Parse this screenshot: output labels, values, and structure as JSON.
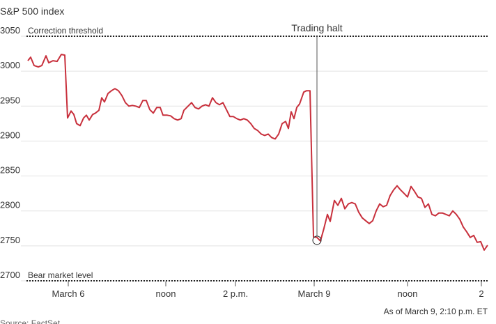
{
  "chart_data": {
    "type": "line",
    "title": "S&P 500 index",
    "x": [
      0,
      0.8,
      1.8,
      3,
      4,
      5.2,
      6,
      7.2,
      8.4,
      9.6,
      10.6,
      11.4,
      12.4,
      13.2,
      14,
      15,
      16,
      16.8,
      17.6,
      18.6,
      19.4,
      20.4,
      21.2,
      22,
      23,
      24,
      25,
      26,
      27,
      28,
      29,
      30,
      31,
      32,
      33,
      34,
      35,
      36,
      37,
      38,
      38.8,
      40,
      41,
      42,
      43,
      44,
      44.8,
      46,
      47,
      48,
      49,
      50,
      51,
      52,
      53,
      54,
      55,
      56,
      57,
      58,
      59,
      60,
      61,
      62,
      63,
      64,
      65,
      66,
      67,
      68,
      69,
      70,
      71,
      72,
      73,
      74,
      74.8,
      75.6,
      76.4,
      77.2,
      78,
      79.2,
      80,
      81,
      82,
      83,
      84,
      85,
      86,
      86.8,
      88,
      89,
      90,
      91,
      92,
      93,
      94,
      95,
      96,
      97,
      98,
      99,
      100,
      101,
      102,
      103,
      104,
      105,
      106,
      107,
      108,
      109,
      110,
      111,
      112,
      113,
      114,
      115,
      116,
      117,
      118,
      119,
      120,
      121,
      122,
      123,
      124,
      125,
      126,
      127,
      128,
      129,
      130,
      131,
      132
    ],
    "series": [
      {
        "name": "S&P 500",
        "color": "#c8303c",
        "values": [
          3015,
          3020,
          3008,
          3006,
          3008,
          3022,
          3012,
          3015,
          3014,
          3024,
          3023,
          2933,
          2943,
          2938,
          2925,
          2922,
          2933,
          2937,
          2930,
          2938,
          2940,
          2944,
          2962,
          2956,
          2968,
          2972,
          2975,
          2972,
          2965,
          2955,
          2950,
          2951,
          2950,
          2948,
          2958,
          2958,
          2945,
          2940,
          2948,
          2948,
          2937,
          2937,
          2936,
          2932,
          2930,
          2932,
          2944,
          2950,
          2955,
          2948,
          2946,
          2950,
          2952,
          2950,
          2962,
          2955,
          2952,
          2955,
          2945,
          2935,
          2935,
          2932,
          2930,
          2932,
          2930,
          2925,
          2918,
          2915,
          2910,
          2908,
          2910,
          2905,
          2903,
          2910,
          2925,
          2928,
          2918,
          2942,
          2932,
          2948,
          2953,
          2970,
          2972,
          2972,
          2763,
          2762,
          2757,
          2775,
          2795,
          2785,
          2815,
          2808,
          2818,
          2803,
          2810,
          2812,
          2810,
          2798,
          2790,
          2786,
          2782,
          2786,
          2800,
          2810,
          2806,
          2808,
          2822,
          2830,
          2836,
          2830,
          2825,
          2820,
          2835,
          2828,
          2820,
          2818,
          2805,
          2810,
          2795,
          2793,
          2797,
          2797,
          2795,
          2793,
          2800,
          2795,
          2788,
          2777,
          2770,
          2762,
          2765,
          2755,
          2756,
          2744,
          2751
        ]
      }
    ],
    "xlim": [
      0,
      132
    ],
    "xticks": [
      {
        "value": 11.6,
        "label": "March 6"
      },
      {
        "value": 39.6,
        "label": "noon"
      },
      {
        "value": 59.6,
        "label": "2 p.m."
      },
      {
        "value": 82.2,
        "label": "March 9"
      },
      {
        "value": 109,
        "label": "noon"
      },
      {
        "value": 130.2,
        "label": "2"
      }
    ],
    "ylim": [
      2700,
      3050
    ],
    "yticks": [
      2700,
      2750,
      2800,
      2850,
      2900,
      2950,
      3000,
      3050
    ],
    "grid": true,
    "reference_lines": [
      {
        "label": "Correction threshold",
        "value": 3050
      },
      {
        "label": "Bear market level",
        "value": 2700
      }
    ],
    "annotations": [
      {
        "text": "Trading halt",
        "x": 83,
        "y": 2758
      }
    ],
    "note": "As of March 9, 2:10 p.m. ET",
    "source": "Source: FactSet"
  }
}
